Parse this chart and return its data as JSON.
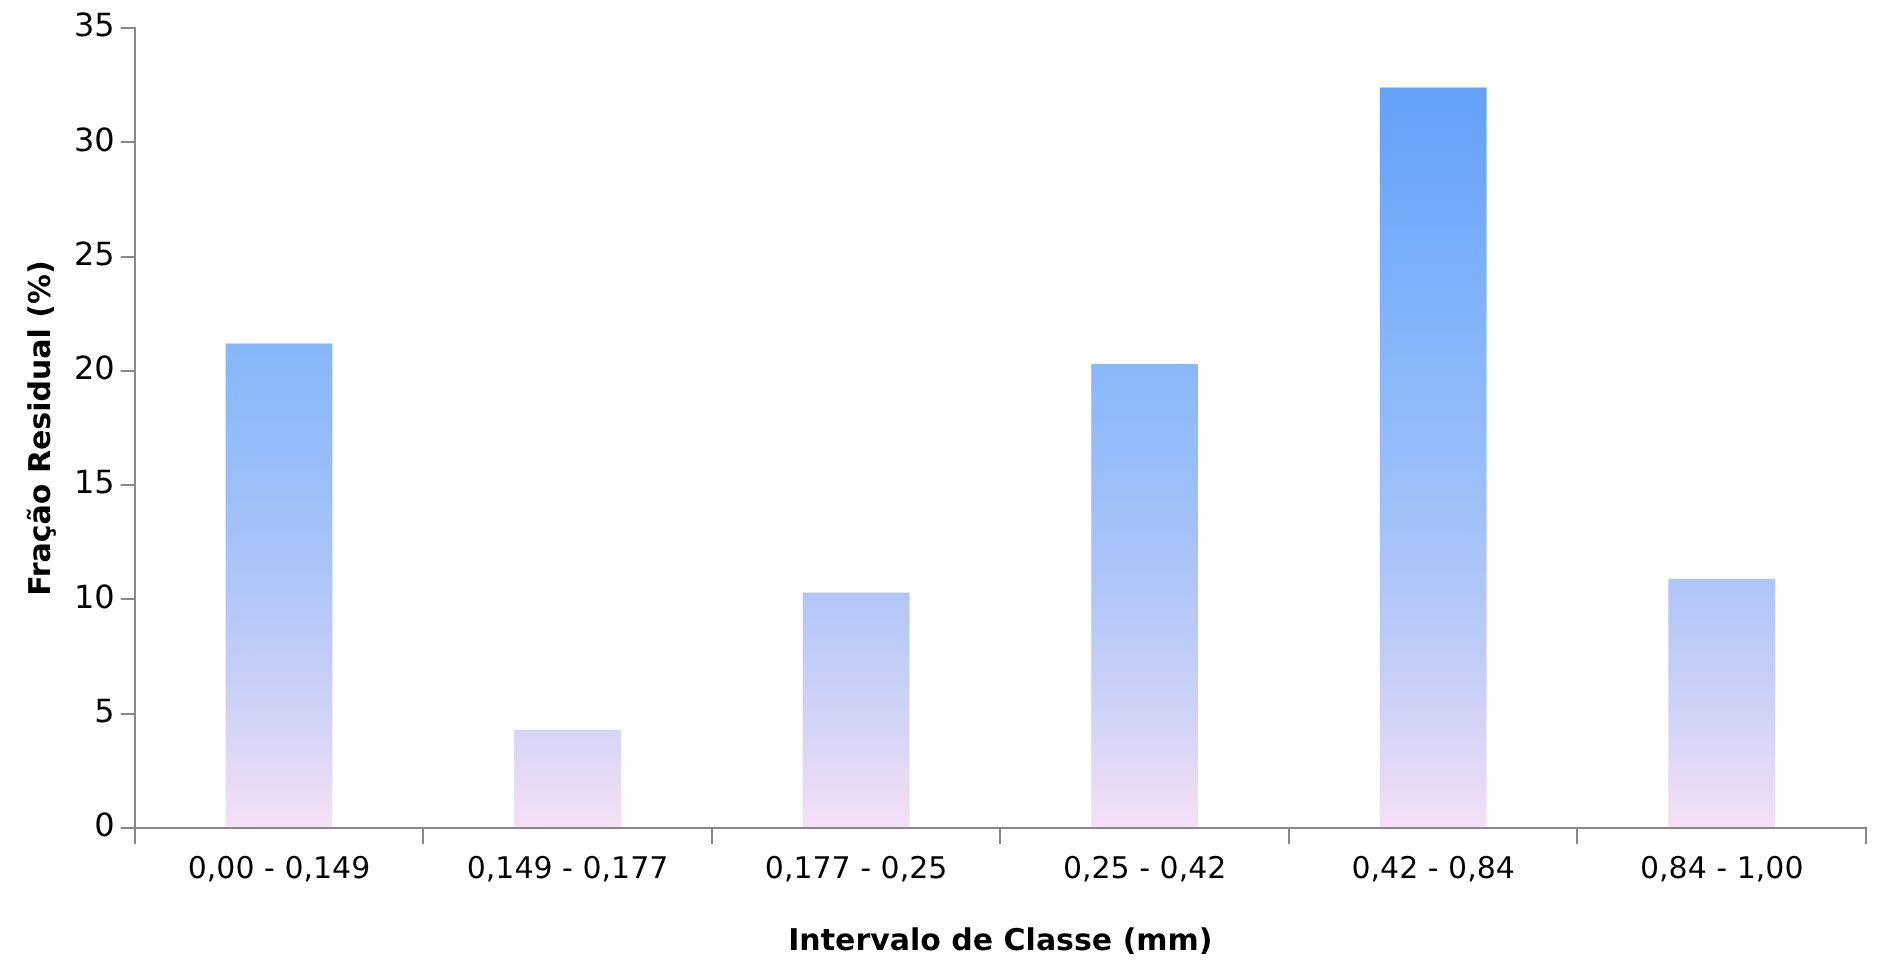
{
  "chart_data": {
    "type": "bar",
    "xlabel": "Intervalo de Classe (mm)",
    "ylabel": "Fração Residual (%)",
    "categories": [
      "0,00 - 0,149",
      "0,149 - 0,177",
      "0,177 - 0,25",
      "0,25 - 0,42",
      "0,42 - 0,84",
      "0,84 - 1,00"
    ],
    "values": [
      21.2,
      4.3,
      10.3,
      20.3,
      32.4,
      10.9
    ],
    "color": "#5b9cf9",
    "ylim": [
      0,
      35
    ],
    "yticks": [
      0,
      5,
      10,
      15,
      20,
      25,
      30,
      35
    ],
    "grid": false,
    "legend": false
  }
}
